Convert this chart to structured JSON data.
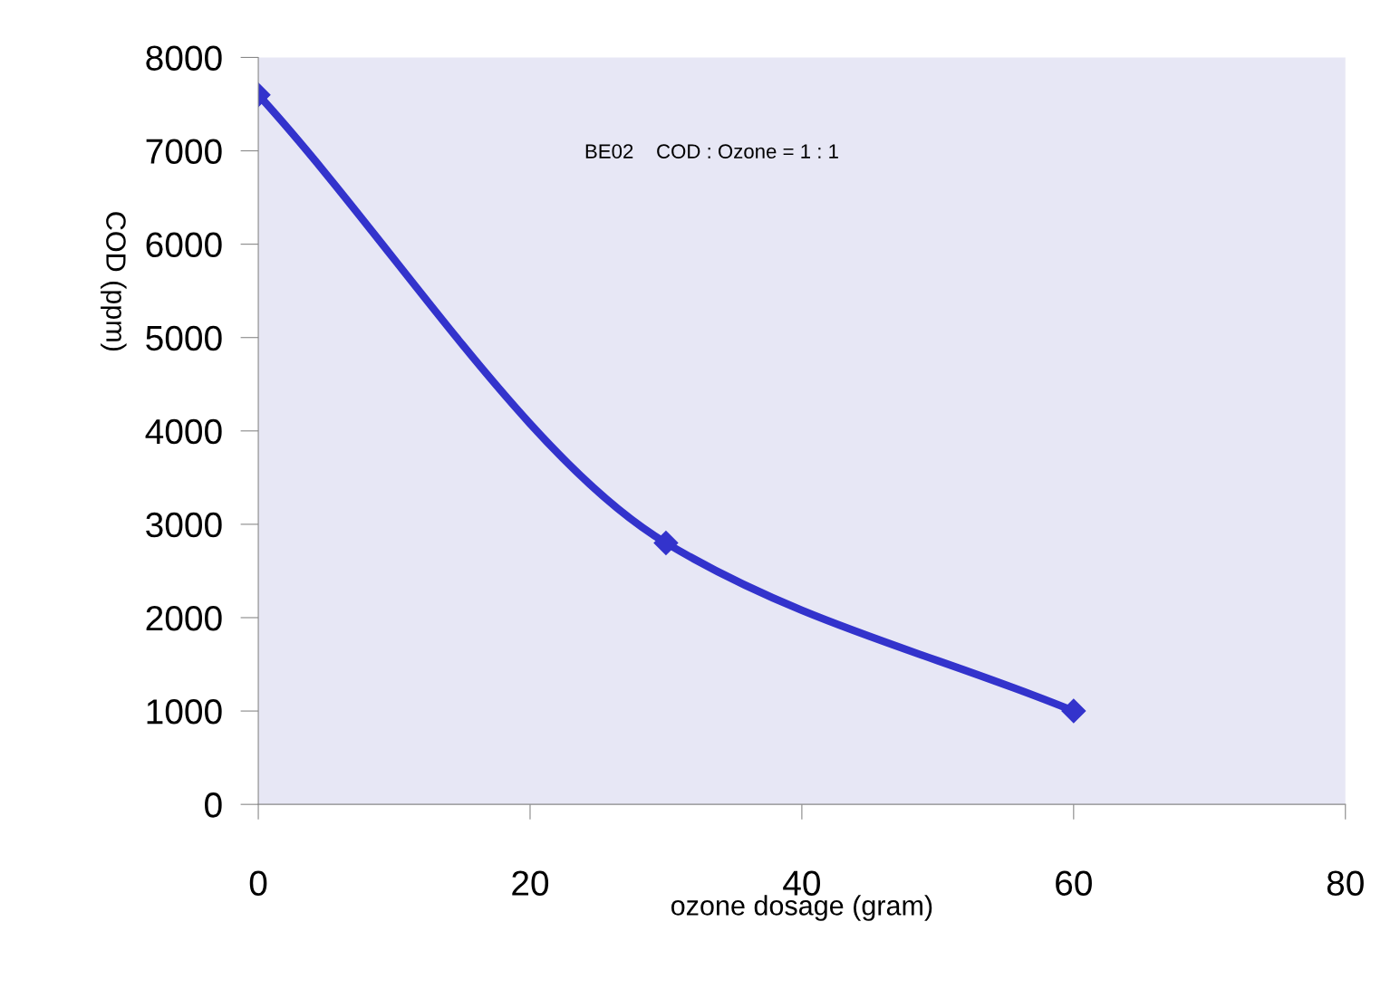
{
  "chart_data": {
    "type": "line",
    "xlabel": "ozone dosage (gram)",
    "ylabel": "COD (ppm)",
    "annotations": [
      "BE02    COD : Ozone = 1 : 1"
    ],
    "x": [
      0,
      30,
      60
    ],
    "series": [
      {
        "color": "#3333cc",
        "values": [
          7600,
          2800,
          1000
        ]
      }
    ],
    "xlim": [
      0,
      80
    ],
    "xticks": [
      0,
      20,
      40,
      60,
      80
    ],
    "ylim": [
      0,
      8000
    ],
    "yticks": [
      0,
      1000,
      2000,
      3000,
      4000,
      5000,
      6000,
      7000,
      8000
    ],
    "grid": false,
    "marker": "diamond",
    "line_style": "solid"
  }
}
